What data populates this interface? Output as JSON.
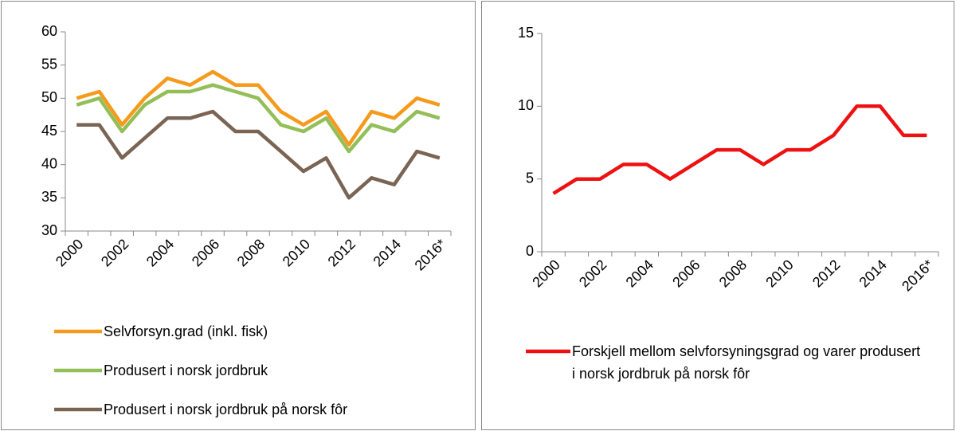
{
  "chart_data": [
    {
      "type": "line",
      "categories": [
        "2000",
        null,
        "2002",
        null,
        "2004",
        null,
        "2006",
        null,
        "2008",
        null,
        "2010",
        null,
        "2012",
        null,
        "2014",
        null,
        "2016*"
      ],
      "series": [
        {
          "name": "Selvforsyn.grad (inkl. fisk)",
          "color": "#f59a1c",
          "values": [
            50,
            51,
            46,
            50,
            53,
            52,
            54,
            52,
            52,
            48,
            46,
            48,
            43,
            48,
            47,
            50,
            49
          ]
        },
        {
          "name": "Produsert i norsk jordbruk",
          "color": "#93bf58",
          "values": [
            49,
            50,
            45,
            49,
            51,
            51,
            52,
            51,
            50,
            46,
            45,
            47,
            42,
            46,
            45,
            48,
            47
          ]
        },
        {
          "name": "Produsert i norsk jordbruk på norsk fôr",
          "color": "#7a6453",
          "values": [
            46,
            46,
            41,
            44,
            47,
            47,
            48,
            45,
            45,
            42,
            39,
            41,
            35,
            38,
            37,
            42,
            41
          ]
        }
      ],
      "ylim": [
        30,
        60
      ],
      "yticks": [
        30,
        35,
        40,
        45,
        50,
        55,
        60
      ],
      "grid": false,
      "legend": "bottom"
    },
    {
      "type": "line",
      "categories": [
        "2000",
        null,
        "2002",
        null,
        "2004",
        null,
        "2006",
        null,
        "2008",
        null,
        "2010",
        null,
        "2012",
        null,
        "2014",
        null,
        "2016*"
      ],
      "series": [
        {
          "name": "Forskjell mellom selvforsyningsgrad og varer produsert i norsk jordbruk på norsk fôr",
          "color": "#ee1111",
          "values": [
            4,
            5,
            5,
            6,
            6,
            5,
            6,
            7,
            7,
            6,
            7,
            7,
            8,
            10,
            10,
            8,
            8
          ]
        }
      ],
      "ylim": [
        0,
        15
      ],
      "yticks": [
        0,
        5,
        10,
        15
      ],
      "grid": false,
      "legend": "bottom"
    }
  ]
}
